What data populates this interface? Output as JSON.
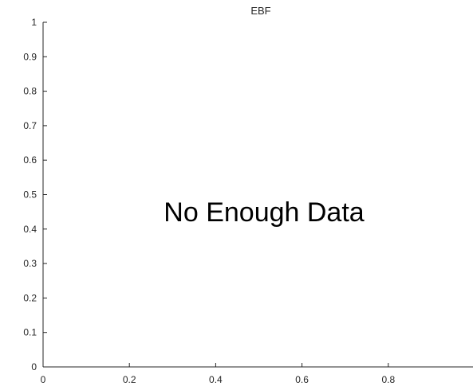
{
  "chart_data": {
    "type": "line",
    "title": "EBF",
    "xlabel": "",
    "ylabel": "",
    "xlim": [
      0,
      1
    ],
    "ylim": [
      0,
      1
    ],
    "x_ticks": [
      0,
      0.2,
      0.4,
      0.6,
      0.8
    ],
    "x_tick_labels": [
      "0",
      "0.2",
      "0.4",
      "0.6",
      "0.8"
    ],
    "y_ticks": [
      0,
      0.1,
      0.2,
      0.3,
      0.4,
      0.5,
      0.6,
      0.7,
      0.8,
      0.9,
      1
    ],
    "y_tick_labels": [
      "0",
      "0.1",
      "0.2",
      "0.3",
      "0.4",
      "0.5",
      "0.6",
      "0.7",
      "0.8",
      "0.9",
      "1"
    ],
    "series": [],
    "grid": false,
    "annotation": "No Enough Data"
  }
}
